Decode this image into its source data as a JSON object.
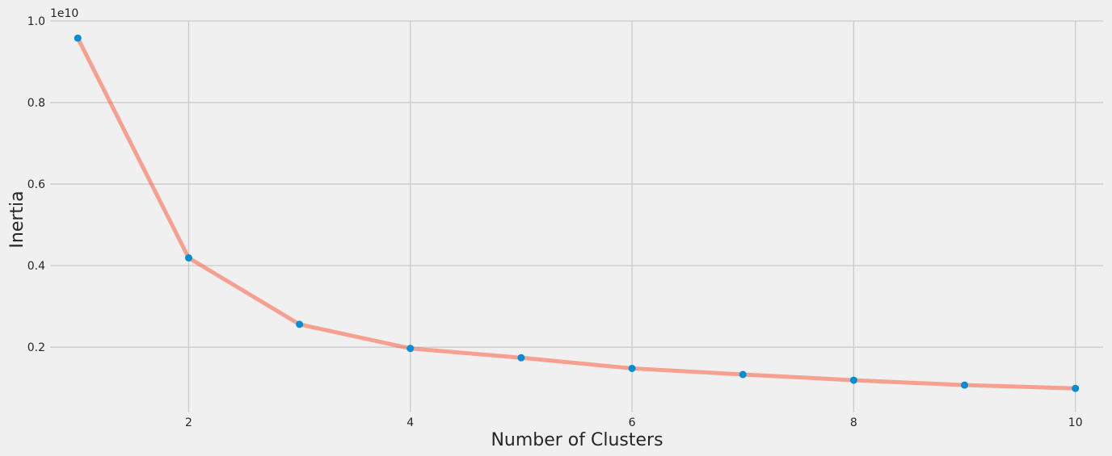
{
  "chart_data": {
    "type": "line",
    "title": "",
    "xlabel": "Number of Clusters",
    "ylabel": "Inertia",
    "y_offset_label": "1e10",
    "x": [
      1,
      2,
      3,
      4,
      5,
      6,
      7,
      8,
      9,
      10
    ],
    "series": [
      {
        "values": [
          9580000000,
          4190000000,
          2560000000,
          1970000000,
          1740000000,
          1480000000,
          1330000000,
          1190000000,
          1070000000,
          990000000
        ]
      }
    ],
    "xlim": [
      0.75,
      10.25
    ],
    "ylim": [
      0.4,
      10.0
    ],
    "y_units": "1e9",
    "x_ticks": [
      2,
      4,
      6,
      8,
      10
    ],
    "x_tick_labels": [
      "2",
      "4",
      "6",
      "8",
      "10"
    ],
    "y_ticks": [
      0.2,
      0.4,
      0.6,
      0.8,
      1.0
    ],
    "y_tick_labels": [
      "0.2",
      "0.4",
      "0.6",
      "0.8",
      "1.0"
    ],
    "grid": true,
    "colors": {
      "background": "#f0f0f0",
      "grid": "#cbcbcb",
      "line": "#fc4f30",
      "marker": "#008fd5",
      "text": "#262626"
    }
  }
}
